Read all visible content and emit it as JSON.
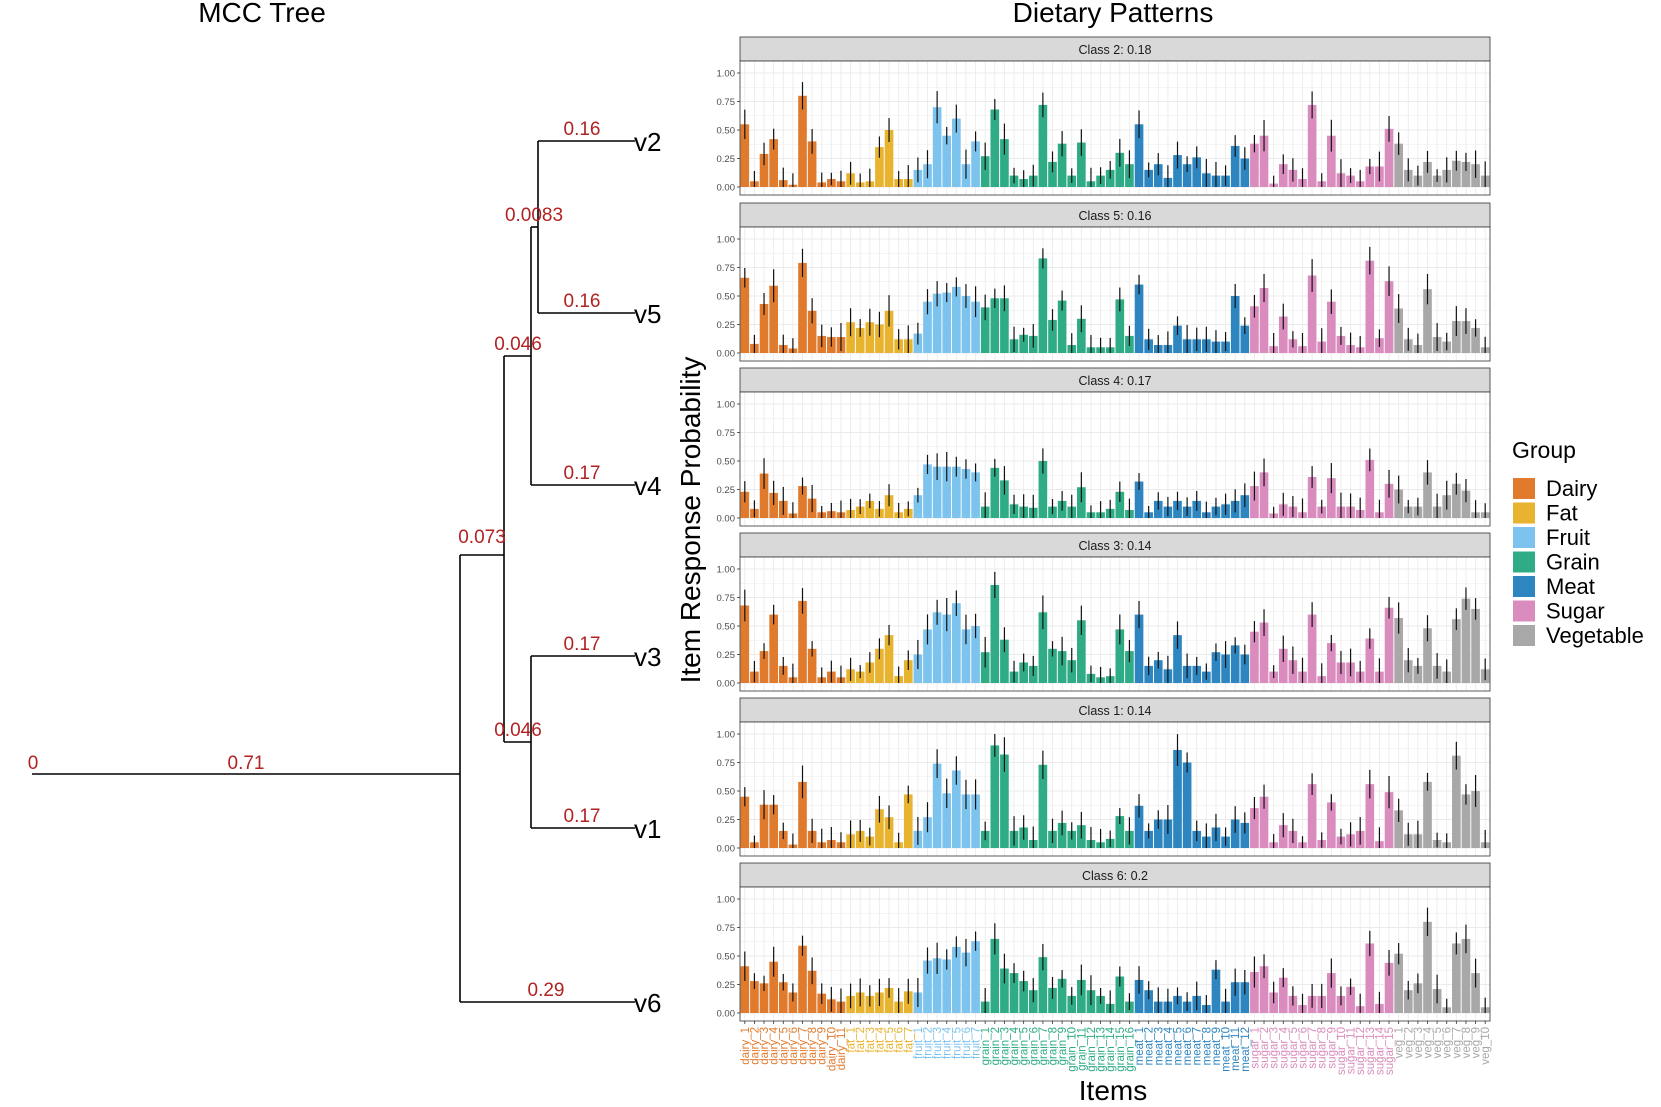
{
  "tree": {
    "title": "MCC Tree",
    "tips": [
      "v2",
      "v5",
      "v4",
      "v3",
      "v1",
      "v6"
    ],
    "branch_labels": {
      "root": "0",
      "trunk": "0.71",
      "v2": "0.16",
      "v5": "0.16",
      "v4": "0.17",
      "v3": "0.17",
      "v1": "0.17",
      "v6": "0.29",
      "node_v2v5": "0.0083",
      "node_v2v5v4": "0.046",
      "node_upper": "0.073",
      "node_v3v1": "0.046"
    }
  },
  "chart_data": {
    "type": "bar",
    "title": "Dietary Patterns",
    "xlabel": "Items",
    "ylabel": "Item Response Probability",
    "ylim": [
      0,
      1
    ],
    "yticks": [
      "0.00",
      "0.25",
      "0.50",
      "0.75",
      "1.00"
    ],
    "legend": {
      "title": "Group",
      "position": "right"
    },
    "groups": [
      {
        "name": "Dairy",
        "color": "#e07b2e",
        "count": 11
      },
      {
        "name": "Fat",
        "color": "#e8b32e",
        "count": 7
      },
      {
        "name": "Fruit",
        "color": "#7cc3ee",
        "count": 7
      },
      {
        "name": "Grain",
        "color": "#2fac86",
        "count": 16
      },
      {
        "name": "Meat",
        "color": "#2e86c1",
        "count": 12
      },
      {
        "name": "Sugar",
        "color": "#d98cbd",
        "count": 15
      },
      {
        "name": "Vegetable",
        "color": "#a8a8a8",
        "count": 10
      }
    ],
    "categories": [
      "dairy_1",
      "dairy_2",
      "dairy_3",
      "dairy_4",
      "dairy_5",
      "dairy_6",
      "dairy_7",
      "dairy_8",
      "dairy_9",
      "dairy_10",
      "dairy_11",
      "fat_1",
      "fat_2",
      "fat_3",
      "fat_4",
      "fat_5",
      "fat_6",
      "fat_7",
      "fruit_1",
      "fruit_2",
      "fruit_3",
      "fruit_4",
      "fruit_5",
      "fruit_6",
      "fruit_7",
      "grain_1",
      "grain_2",
      "grain_3",
      "grain_4",
      "grain_5",
      "grain_6",
      "grain_7",
      "grain_8",
      "grain_9",
      "grain_10",
      "grain_11",
      "grain_12",
      "grain_13",
      "grain_14",
      "grain_15",
      "grain_16",
      "meat_1",
      "meat_2",
      "meat_3",
      "meat_4",
      "meat_5",
      "meat_6",
      "meat_7",
      "meat_8",
      "meat_9",
      "meat_10",
      "meat_11",
      "meat_12",
      "sugar_1",
      "sugar_2",
      "sugar_3",
      "sugar_4",
      "sugar_5",
      "sugar_6",
      "sugar_7",
      "sugar_8",
      "sugar_9",
      "sugar_10",
      "sugar_11",
      "sugar_12",
      "sugar_13",
      "sugar_14",
      "sugar_15",
      "veg_1",
      "veg_2",
      "veg_3",
      "veg_4",
      "veg_5",
      "veg_6",
      "veg_7",
      "veg_8",
      "veg_9",
      "veg_10"
    ],
    "panels": [
      {
        "label": "Class 2: 0.18",
        "values": [
          0.55,
          0.05,
          0.29,
          0.42,
          0.06,
          0.02,
          0.8,
          0.4,
          0.04,
          0.07,
          0.05,
          0.12,
          0.04,
          0.05,
          0.35,
          0.5,
          0.07,
          0.07,
          0.15,
          0.2,
          0.7,
          0.45,
          0.6,
          0.2,
          0.4,
          0.27,
          0.68,
          0.42,
          0.1,
          0.07,
          0.1,
          0.72,
          0.22,
          0.38,
          0.1,
          0.39,
          0.05,
          0.1,
          0.15,
          0.3,
          0.2,
          0.55,
          0.15,
          0.2,
          0.08,
          0.28,
          0.2,
          0.26,
          0.12,
          0.1,
          0.1,
          0.36,
          0.25,
          0.38,
          0.45,
          0.03,
          0.2,
          0.15,
          0.07,
          0.72,
          0.05,
          0.45,
          0.12,
          0.1,
          0.05,
          0.18,
          0.18,
          0.51,
          0.38,
          0.15,
          0.1,
          0.22,
          0.1,
          0.15,
          0.23,
          0.22,
          0.2,
          0.1
        ]
      },
      {
        "label": "Class 5: 0.16",
        "values": [
          0.66,
          0.08,
          0.43,
          0.59,
          0.07,
          0.04,
          0.79,
          0.37,
          0.15,
          0.14,
          0.14,
          0.27,
          0.22,
          0.27,
          0.25,
          0.37,
          0.12,
          0.12,
          0.17,
          0.45,
          0.52,
          0.53,
          0.58,
          0.5,
          0.45,
          0.4,
          0.48,
          0.48,
          0.12,
          0.16,
          0.15,
          0.83,
          0.29,
          0.46,
          0.07,
          0.3,
          0.05,
          0.05,
          0.05,
          0.47,
          0.15,
          0.6,
          0.12,
          0.07,
          0.07,
          0.24,
          0.12,
          0.12,
          0.12,
          0.1,
          0.1,
          0.5,
          0.24,
          0.41,
          0.57,
          0.06,
          0.32,
          0.12,
          0.06,
          0.68,
          0.1,
          0.45,
          0.15,
          0.07,
          0.05,
          0.81,
          0.13,
          0.63,
          0.39,
          0.12,
          0.07,
          0.56,
          0.14,
          0.1,
          0.28,
          0.28,
          0.22,
          0.05
        ]
      },
      {
        "label": "Class 4: 0.17",
        "values": [
          0.23,
          0.08,
          0.39,
          0.22,
          0.15,
          0.04,
          0.28,
          0.17,
          0.05,
          0.06,
          0.05,
          0.07,
          0.1,
          0.15,
          0.08,
          0.2,
          0.05,
          0.08,
          0.2,
          0.47,
          0.45,
          0.45,
          0.45,
          0.43,
          0.4,
          0.1,
          0.44,
          0.33,
          0.12,
          0.1,
          0.09,
          0.5,
          0.1,
          0.15,
          0.1,
          0.27,
          0.05,
          0.05,
          0.08,
          0.23,
          0.07,
          0.32,
          0.05,
          0.15,
          0.1,
          0.15,
          0.1,
          0.15,
          0.05,
          0.1,
          0.12,
          0.15,
          0.2,
          0.28,
          0.4,
          0.04,
          0.12,
          0.1,
          0.05,
          0.36,
          0.1,
          0.35,
          0.1,
          0.1,
          0.07,
          0.51,
          0.05,
          0.3,
          0.25,
          0.1,
          0.1,
          0.4,
          0.1,
          0.2,
          0.3,
          0.24,
          0.05,
          0.05
        ]
      },
      {
        "label": "Class 3: 0.14",
        "values": [
          0.68,
          0.1,
          0.28,
          0.6,
          0.15,
          0.05,
          0.72,
          0.3,
          0.05,
          0.1,
          0.05,
          0.12,
          0.1,
          0.18,
          0.3,
          0.42,
          0.06,
          0.2,
          0.25,
          0.47,
          0.62,
          0.6,
          0.7,
          0.47,
          0.5,
          0.27,
          0.86,
          0.38,
          0.1,
          0.18,
          0.15,
          0.62,
          0.3,
          0.28,
          0.2,
          0.55,
          0.08,
          0.05,
          0.06,
          0.47,
          0.28,
          0.6,
          0.15,
          0.2,
          0.12,
          0.42,
          0.15,
          0.15,
          0.1,
          0.27,
          0.25,
          0.33,
          0.25,
          0.45,
          0.53,
          0.1,
          0.3,
          0.2,
          0.1,
          0.6,
          0.06,
          0.35,
          0.18,
          0.18,
          0.1,
          0.39,
          0.1,
          0.66,
          0.57,
          0.2,
          0.15,
          0.48,
          0.15,
          0.1,
          0.56,
          0.74,
          0.65,
          0.12
        ]
      },
      {
        "label": "Class 1: 0.14",
        "values": [
          0.45,
          0.05,
          0.38,
          0.38,
          0.15,
          0.03,
          0.58,
          0.15,
          0.05,
          0.07,
          0.05,
          0.12,
          0.15,
          0.1,
          0.34,
          0.27,
          0.05,
          0.47,
          0.15,
          0.27,
          0.74,
          0.48,
          0.68,
          0.47,
          0.47,
          0.15,
          0.9,
          0.82,
          0.15,
          0.18,
          0.07,
          0.73,
          0.15,
          0.22,
          0.15,
          0.2,
          0.07,
          0.05,
          0.08,
          0.28,
          0.15,
          0.37,
          0.15,
          0.25,
          0.25,
          0.86,
          0.75,
          0.15,
          0.1,
          0.18,
          0.1,
          0.25,
          0.22,
          0.35,
          0.45,
          0.05,
          0.2,
          0.15,
          0.05,
          0.56,
          0.07,
          0.4,
          0.1,
          0.12,
          0.15,
          0.56,
          0.06,
          0.49,
          0.33,
          0.12,
          0.12,
          0.58,
          0.07,
          0.05,
          0.81,
          0.47,
          0.5,
          0.05
        ]
      },
      {
        "label": "Class 6: 0.2",
        "values": [
          0.41,
          0.28,
          0.26,
          0.45,
          0.27,
          0.18,
          0.59,
          0.37,
          0.17,
          0.12,
          0.1,
          0.15,
          0.18,
          0.15,
          0.18,
          0.22,
          0.1,
          0.19,
          0.18,
          0.46,
          0.48,
          0.47,
          0.58,
          0.53,
          0.63,
          0.1,
          0.65,
          0.39,
          0.35,
          0.28,
          0.2,
          0.49,
          0.22,
          0.3,
          0.15,
          0.29,
          0.2,
          0.15,
          0.08,
          0.32,
          0.1,
          0.29,
          0.2,
          0.1,
          0.1,
          0.15,
          0.1,
          0.15,
          0.07,
          0.38,
          0.1,
          0.27,
          0.27,
          0.36,
          0.41,
          0.18,
          0.31,
          0.15,
          0.07,
          0.15,
          0.15,
          0.35,
          0.15,
          0.23,
          0.06,
          0.61,
          0.08,
          0.44,
          0.52,
          0.2,
          0.26,
          0.8,
          0.21,
          0.05,
          0.61,
          0.65,
          0.35,
          0.05
        ]
      }
    ]
  }
}
